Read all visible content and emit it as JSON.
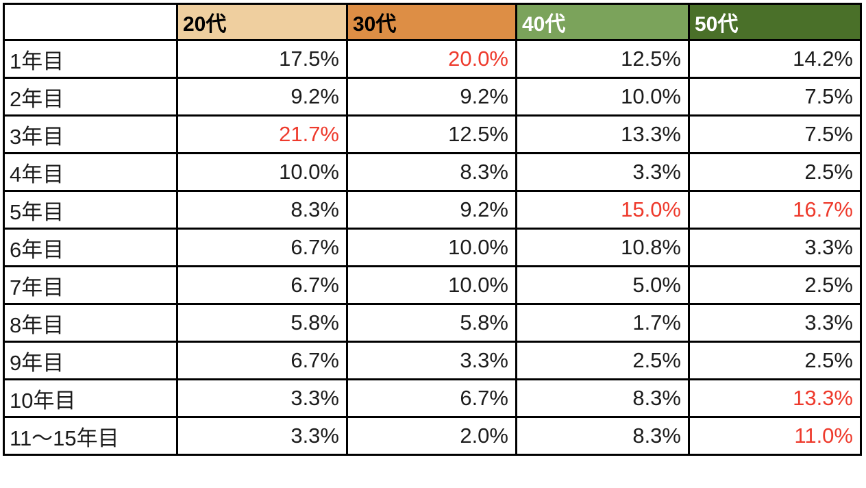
{
  "table": {
    "corner_label": "",
    "columns": [
      {
        "label": "20代",
        "bg": "#efcf9f",
        "fg": "#000000"
      },
      {
        "label": "30代",
        "bg": "#dd8e45",
        "fg": "#000000"
      },
      {
        "label": "40代",
        "bg": "#7ba35b",
        "fg": "#ffffff"
      },
      {
        "label": "50代",
        "bg": "#4a7029",
        "fg": "#ffffff"
      }
    ],
    "rows": [
      {
        "label": "1年目",
        "values": [
          "17.5%",
          "20.0%",
          "12.5%",
          "14.2%"
        ],
        "highlight": [
          false,
          true,
          false,
          false
        ]
      },
      {
        "label": "2年目",
        "values": [
          "9.2%",
          "9.2%",
          "10.0%",
          "7.5%"
        ],
        "highlight": [
          false,
          false,
          false,
          false
        ]
      },
      {
        "label": "3年目",
        "values": [
          "21.7%",
          "12.5%",
          "13.3%",
          "7.5%"
        ],
        "highlight": [
          true,
          false,
          false,
          false
        ]
      },
      {
        "label": "4年目",
        "values": [
          "10.0%",
          "8.3%",
          "3.3%",
          "2.5%"
        ],
        "highlight": [
          false,
          false,
          false,
          false
        ]
      },
      {
        "label": "5年目",
        "values": [
          "8.3%",
          "9.2%",
          "15.0%",
          "16.7%"
        ],
        "highlight": [
          false,
          false,
          true,
          true
        ]
      },
      {
        "label": "6年目",
        "values": [
          "6.7%",
          "10.0%",
          "10.8%",
          "3.3%"
        ],
        "highlight": [
          false,
          false,
          false,
          false
        ]
      },
      {
        "label": "7年目",
        "values": [
          "6.7%",
          "10.0%",
          "5.0%",
          "2.5%"
        ],
        "highlight": [
          false,
          false,
          false,
          false
        ]
      },
      {
        "label": "8年目",
        "values": [
          "5.8%",
          "5.8%",
          "1.7%",
          "3.3%"
        ],
        "highlight": [
          false,
          false,
          false,
          false
        ]
      },
      {
        "label": "9年目",
        "values": [
          "6.7%",
          "3.3%",
          "2.5%",
          "2.5%"
        ],
        "highlight": [
          false,
          false,
          false,
          false
        ]
      },
      {
        "label": "10年目",
        "values": [
          "3.3%",
          "6.7%",
          "8.3%",
          "13.3%"
        ],
        "highlight": [
          false,
          false,
          false,
          true
        ]
      },
      {
        "label": "11〜15年目",
        "values": [
          "3.3%",
          "2.0%",
          "8.3%",
          "11.0%"
        ],
        "highlight": [
          false,
          false,
          false,
          true
        ]
      }
    ]
  },
  "colors": {
    "highlight_text": "#ee3a2c",
    "border": "#000000",
    "header_20s_bg": "#efcf9f",
    "header_30s_bg": "#dd8e45",
    "header_40s_bg": "#7ba35b",
    "header_50s_bg": "#4a7029",
    "default_text": "#1c1c1c",
    "background": "#ffffff"
  },
  "chart_data": {
    "type": "table",
    "title": "",
    "unit": "%",
    "categories": [
      "1年目",
      "2年目",
      "3年目",
      "4年目",
      "5年目",
      "6年目",
      "7年目",
      "8年目",
      "9年目",
      "10年目",
      "11〜15年目"
    ],
    "series": [
      {
        "name": "20代",
        "values": [
          17.5,
          9.2,
          21.7,
          10.0,
          8.3,
          6.7,
          6.7,
          5.8,
          6.7,
          3.3,
          3.3
        ]
      },
      {
        "name": "30代",
        "values": [
          20.0,
          9.2,
          12.5,
          8.3,
          9.2,
          10.0,
          10.0,
          5.8,
          3.3,
          6.7,
          2.0
        ]
      },
      {
        "name": "40代",
        "values": [
          12.5,
          10.0,
          13.3,
          3.3,
          15.0,
          10.8,
          5.0,
          1.7,
          2.5,
          8.3,
          8.3
        ]
      },
      {
        "name": "50代",
        "values": [
          14.2,
          7.5,
          7.5,
          2.5,
          16.7,
          3.3,
          2.5,
          3.3,
          2.5,
          13.3,
          11.0
        ]
      }
    ],
    "highlighted_cells": [
      {
        "row": "1年目",
        "column": "30代",
        "value": 20.0
      },
      {
        "row": "3年目",
        "column": "20代",
        "value": 21.7
      },
      {
        "row": "5年目",
        "column": "40代",
        "value": 15.0
      },
      {
        "row": "5年目",
        "column": "50代",
        "value": 16.7
      },
      {
        "row": "10年目",
        "column": "50代",
        "value": 13.3
      },
      {
        "row": "11〜15年目",
        "column": "50代",
        "value": 11.0
      }
    ],
    "highlight_color": "#ee3a2c"
  }
}
